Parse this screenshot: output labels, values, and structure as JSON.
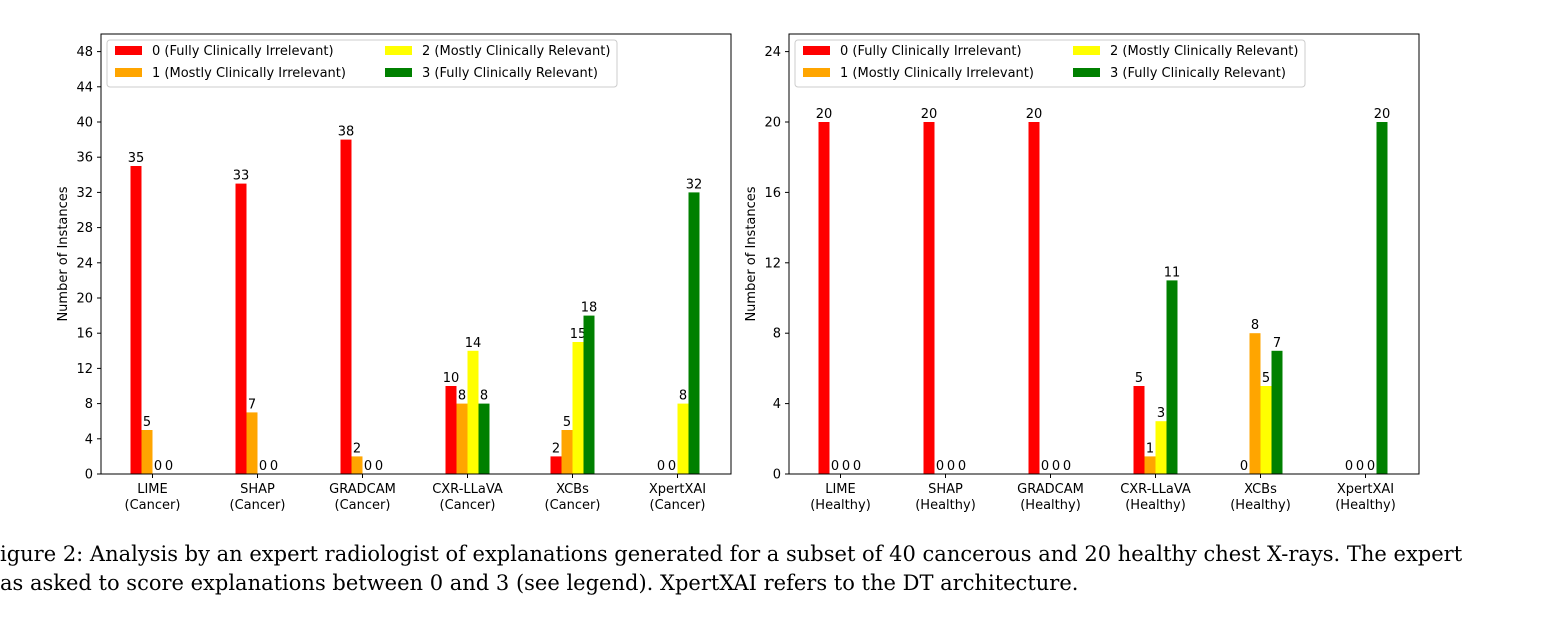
{
  "chart_data": [
    {
      "type": "bar",
      "ylabel": "Number of Instances",
      "ylim": [
        0,
        50
      ],
      "yticks": [
        0,
        4,
        8,
        12,
        16,
        20,
        24,
        28,
        32,
        36,
        40,
        44,
        48
      ],
      "categories": [
        "LIME\n(Cancer)",
        "SHAP\n(Cancer)",
        "GRADCAM\n(Cancer)",
        "CXR-LLaVA\n(Cancer)",
        "XCBs\n(Cancer)",
        "XpertXAI\n(Cancer)"
      ],
      "series": [
        {
          "name": "0 (Fully Clinically Irrelevant)",
          "color": "#ff0000",
          "values": [
            35,
            33,
            38,
            10,
            2,
            0
          ]
        },
        {
          "name": "1 (Mostly Clinically Irrelevant)",
          "color": "#ffa500",
          "values": [
            5,
            7,
            2,
            8,
            5,
            0
          ]
        },
        {
          "name": "2 (Mostly Clinically Relevant)",
          "color": "#ffff00",
          "values": [
            0,
            0,
            0,
            14,
            15,
            8
          ]
        },
        {
          "name": "3 (Fully Clinically Relevant)",
          "color": "#008000",
          "values": [
            0,
            0,
            0,
            8,
            18,
            32
          ]
        }
      ],
      "legend": "top-left",
      "grid": false
    },
    {
      "type": "bar",
      "ylabel": "Number of Instances",
      "ylim": [
        0,
        25
      ],
      "yticks": [
        0,
        4,
        8,
        12,
        16,
        20,
        24
      ],
      "categories": [
        "LIME\n(Healthy)",
        "SHAP\n(Healthy)",
        "GRADCAM\n(Healthy)",
        "CXR-LLaVA\n(Healthy)",
        "XCBs\n(Healthy)",
        "XpertXAI\n(Healthy)"
      ],
      "series": [
        {
          "name": "0 (Fully Clinically Irrelevant)",
          "color": "#ff0000",
          "values": [
            20,
            20,
            20,
            5,
            0,
            0
          ]
        },
        {
          "name": "1 (Mostly Clinically Irrelevant)",
          "color": "#ffa500",
          "values": [
            0,
            0,
            0,
            1,
            8,
            0
          ]
        },
        {
          "name": "2 (Mostly Clinically Relevant)",
          "color": "#ffff00",
          "values": [
            0,
            0,
            0,
            3,
            5,
            0
          ]
        },
        {
          "name": "3 (Fully Clinically Relevant)",
          "color": "#008000",
          "values": [
            0,
            0,
            0,
            11,
            7,
            20
          ]
        }
      ],
      "legend": "top-left",
      "grid": false
    }
  ],
  "caption": {
    "line1": "igure 2: Analysis by an expert radiologist of explanations generated for a subset of 40 cancerous and 20 healthy chest X-rays. The expert",
    "line2": "as asked to score explanations between 0 and 3 (see legend). XpertXAI refers to the DT architecture."
  }
}
